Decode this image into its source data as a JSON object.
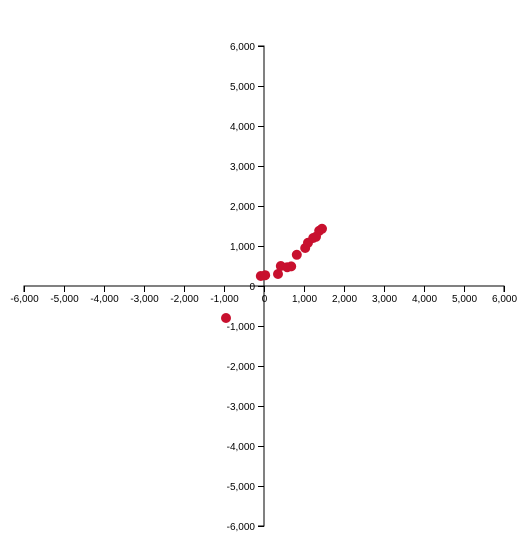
{
  "chart_data": {
    "type": "scatter",
    "title": "",
    "xlabel": "",
    "ylabel": "",
    "xlim": [
      -6000,
      6000
    ],
    "ylim": [
      -6000,
      6000
    ],
    "x_ticks": [
      -6000,
      -5000,
      -4000,
      -3000,
      -2000,
      -1000,
      0,
      1000,
      2000,
      3000,
      4000,
      5000,
      6000
    ],
    "y_ticks": [
      -6000,
      -5000,
      -4000,
      -3000,
      -2000,
      -1000,
      0,
      1000,
      2000,
      3000,
      4000,
      5000,
      6000
    ],
    "x_tick_labels": [
      "-6,000",
      "-5,000",
      "-4,000",
      "-3,000",
      "-2,000",
      "-1,000",
      "0",
      "1,000",
      "2,000",
      "3,000",
      "4,000",
      "5,000",
      "6,000"
    ],
    "y_tick_labels": [
      "-6,000",
      "-5,000",
      "-4,000",
      "-3,000",
      "-2,000",
      "-1,000",
      "0",
      "1,000",
      "2,000",
      "3,000",
      "4,000",
      "5,000",
      "6,000"
    ],
    "grid": false,
    "axes_through_origin": true,
    "point_color": "#c8102e",
    "series": [
      {
        "points": [
          {
            "x": -950,
            "y": -800
          },
          {
            "x": -80,
            "y": 250
          },
          {
            "x": 30,
            "y": 270
          },
          {
            "x": 350,
            "y": 300
          },
          {
            "x": 420,
            "y": 500
          },
          {
            "x": 580,
            "y": 470
          },
          {
            "x": 680,
            "y": 490
          },
          {
            "x": 820,
            "y": 780
          },
          {
            "x": 1030,
            "y": 950
          },
          {
            "x": 1100,
            "y": 1080
          },
          {
            "x": 1230,
            "y": 1200
          },
          {
            "x": 1300,
            "y": 1230
          },
          {
            "x": 1380,
            "y": 1380
          },
          {
            "x": 1450,
            "y": 1430
          }
        ]
      }
    ]
  }
}
